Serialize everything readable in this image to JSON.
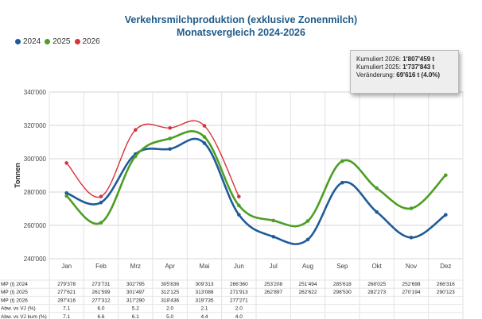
{
  "title": "Verkehrsmilchproduktion (exklusive Zonenmilch)",
  "subtitle": "Monatsvergleich 2024-2026",
  "tooltip": {
    "line1_label": "Kumuliert 2026: ",
    "line1_value": "1'807'459 t",
    "line2_label": "Kumuliert 2025: ",
    "line2_value": "1'737'843 t",
    "line3_label": "Veränderung: ",
    "line3_value": "69'616 t  (4.0%)"
  },
  "chart_data": {
    "type": "line",
    "title": "Verkehrsmilchproduktion (exklusive Zonenmilch)",
    "subtitle": "Monatsvergleich 2024-2026",
    "ylabel": "Tonnen",
    "ylim": [
      240000,
      340000
    ],
    "yticks": [
      240000,
      260000,
      280000,
      300000,
      320000,
      340000
    ],
    "ytick_labels": [
      "240'000",
      "260'000",
      "280'000",
      "300'000",
      "320'000",
      "340'000"
    ],
    "grid": true,
    "legend_position": "top-left",
    "categories": [
      "Jan",
      "Feb",
      "Mrz",
      "Apr",
      "Mai",
      "Jun",
      "Jul",
      "Aug",
      "Sep",
      "Okt",
      "Nov",
      "Dez"
    ],
    "series": [
      {
        "name": "2024",
        "color": "#1f5b99",
        "values": [
          279378,
          273731,
          302795,
          305836,
          309313,
          266360,
          253208,
          251494,
          285618,
          268025,
          252698,
          266316
        ]
      },
      {
        "name": "2025",
        "color": "#4c9e24",
        "values": [
          277621,
          261599,
          301497,
          312125,
          313088,
          271913,
          262897,
          262622,
          298530,
          282273,
          270194,
          290123
        ]
      },
      {
        "name": "2026",
        "color": "#d8323a",
        "values": [
          297416,
          277312,
          317290,
          318436,
          319735,
          277271,
          null,
          null,
          null,
          null,
          null,
          null
        ]
      }
    ]
  },
  "table": {
    "rows": [
      {
        "label": "MP (t) 2024",
        "cells": [
          "279'378",
          "273'731",
          "302'795",
          "305'836",
          "309'313",
          "266'360",
          "253'208",
          "251'494",
          "285'618",
          "268'025",
          "252'698",
          "266'316"
        ]
      },
      {
        "label": "MP (t) 2025",
        "cells": [
          "277'621",
          "261'599",
          "301'497",
          "312'125",
          "313'088",
          "271'913",
          "262'897",
          "262'622",
          "298'530",
          "282'273",
          "270'194",
          "290'123"
        ]
      },
      {
        "label": "MP (t) 2026",
        "cells": [
          "297'416",
          "277'312",
          "317'290",
          "318'436",
          "319'735",
          "277'271",
          "",
          "",
          "",
          "",
          "",
          ""
        ]
      },
      {
        "label": "Abw. vs VJ (%)",
        "cells": [
          "7.1",
          "6.0",
          "5.2",
          "2.0",
          "2.1",
          "2.0",
          "",
          "",
          "",
          "",
          "",
          ""
        ]
      },
      {
        "label": "Abw. vs VJ kum (%)",
        "cells": [
          "7.1",
          "6.6",
          "6.1",
          "5.0",
          "4.4",
          "4.0",
          "",
          "",
          "",
          "",
          "",
          ""
        ]
      }
    ]
  }
}
